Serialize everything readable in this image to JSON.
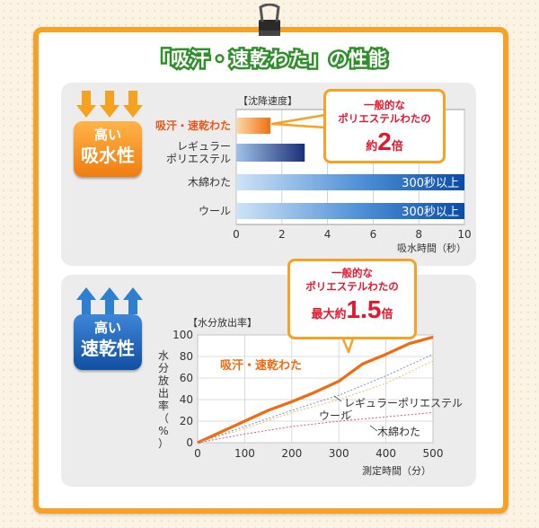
{
  "title": "「吸汗・速乾わた」の性能",
  "colors": {
    "frame": "#f7a227",
    "title_outline": "#2f8f2a",
    "orange_badge": "#f07d10",
    "blue_badge": "#124fa2",
    "callout_red": "#e6162d",
    "highlight_series": "#f06a10",
    "bar_blue": "#0a50a8"
  },
  "panel1": {
    "badge_top": "高い",
    "badge_bottom": "吸水性",
    "callout": {
      "line1": "一般的な",
      "line2": "ポリエステルわたの",
      "prefix": "約",
      "number": "2",
      "suffix": "倍"
    }
  },
  "panel2": {
    "badge_top": "高い",
    "badge_bottom": "速乾性",
    "callout": {
      "line1": "一般的な",
      "line2": "ポリエステルわたの",
      "prefix": "最大約",
      "number": "1.5",
      "suffix": "倍"
    }
  },
  "chart_data": [
    {
      "type": "bar",
      "orientation": "horizontal",
      "title": "【沈降速度】",
      "xlabel": "吸水時間（秒）",
      "categories": [
        "吸汗・速乾わた",
        "レギュラーポリエステル",
        "木綿わた",
        "ウール"
      ],
      "category_lines": [
        [
          "吸汗・速乾わた"
        ],
        [
          "レギュラー",
          "ポリエステル"
        ],
        [
          "木綿わた"
        ],
        [
          "ウール"
        ]
      ],
      "values": [
        1.5,
        3.0,
        10,
        10
      ],
      "value_labels": [
        "",
        "",
        "300秒以上",
        "300秒以上"
      ],
      "xlim": [
        0,
        10
      ],
      "xticks": [
        0,
        2,
        4,
        6,
        8,
        10
      ],
      "grid": true
    },
    {
      "type": "line",
      "title": "【水分放出率】",
      "xlabel": "測定時間（分）",
      "ylabel": "水分放出率（%）",
      "xlim": [
        0,
        500
      ],
      "ylim": [
        0,
        100
      ],
      "xticks": [
        0,
        100,
        200,
        300,
        400,
        500
      ],
      "yticks": [
        0,
        20,
        40,
        60,
        80,
        100
      ],
      "grid": true,
      "series": [
        {
          "name": "吸汗・速乾わた",
          "color": "#f06a10",
          "points": [
            [
              0,
              0
            ],
            [
              50,
              10
            ],
            [
              100,
              20
            ],
            [
              150,
              30
            ],
            [
              200,
              38
            ],
            [
              250,
              47
            ],
            [
              300,
              57
            ],
            [
              350,
              73
            ],
            [
              400,
              82
            ],
            [
              450,
              92
            ],
            [
              500,
              98
            ]
          ]
        },
        {
          "name": "レギュラーポリエステル",
          "color": "#7a8fc8",
          "points": [
            [
              0,
              0
            ],
            [
              100,
              15
            ],
            [
              200,
              30
            ],
            [
              300,
              44
            ],
            [
              400,
              62
            ],
            [
              500,
              82
            ]
          ]
        },
        {
          "name": "ウール",
          "color": "#e8c060",
          "points": [
            [
              0,
              0
            ],
            [
              100,
              13
            ],
            [
              200,
              28
            ],
            [
              300,
              40
            ],
            [
              400,
              55
            ],
            [
              500,
              76
            ]
          ]
        },
        {
          "name": "木綿わた",
          "color": "#e05090",
          "points": [
            [
              0,
              0
            ],
            [
              100,
              8
            ],
            [
              200,
              15
            ],
            [
              300,
              20
            ],
            [
              400,
              24
            ],
            [
              500,
              28
            ]
          ]
        }
      ]
    }
  ]
}
